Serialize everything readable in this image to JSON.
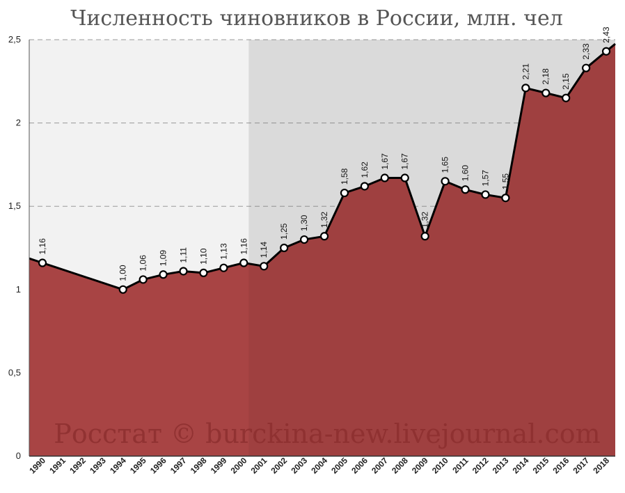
{
  "chart_data": {
    "type": "area",
    "title": "Численность чиновников в России, млн. чел",
    "watermark": "Росстат © burckina-new.livejournal.com",
    "xlabel": "",
    "ylabel": "",
    "ylim": [
      0,
      2.5
    ],
    "yticks": [
      "0",
      "0,5",
      "1",
      "1,5",
      "2",
      "2,5"
    ],
    "grid": true,
    "colors": {
      "area": "#a84444",
      "line": "#000000",
      "bg_left": "#f2f2f2",
      "bg_right": "#e6e6e6",
      "grid": "#999999"
    },
    "categories": [
      "1990",
      "1991",
      "1992",
      "1993",
      "1994",
      "1995",
      "1996",
      "1997",
      "1998",
      "1999",
      "2000",
      "2001",
      "2002",
      "2003",
      "2004",
      "2005",
      "2006",
      "2007",
      "2008",
      "2009",
      "2010",
      "2011",
      "2012",
      "2013",
      "2014",
      "2015",
      "2016",
      "2017",
      "2018"
    ],
    "points": [
      {
        "year": "1990",
        "value": 1.16,
        "label": "1,16"
      },
      {
        "year": "1994",
        "value": 1.0,
        "label": "1,00"
      },
      {
        "year": "1995",
        "value": 1.06,
        "label": "1,06"
      },
      {
        "year": "1996",
        "value": 1.09,
        "label": "1,09"
      },
      {
        "year": "1997",
        "value": 1.11,
        "label": "1,11"
      },
      {
        "year": "1998",
        "value": 1.1,
        "label": "1,10"
      },
      {
        "year": "1999",
        "value": 1.13,
        "label": "1,13"
      },
      {
        "year": "2000",
        "value": 1.16,
        "label": "1,16"
      },
      {
        "year": "2001",
        "value": 1.14,
        "label": "1,14"
      },
      {
        "year": "2002",
        "value": 1.25,
        "label": "1,25"
      },
      {
        "year": "2003",
        "value": 1.3,
        "label": "1,30"
      },
      {
        "year": "2004",
        "value": 1.32,
        "label": "1,32"
      },
      {
        "year": "2005",
        "value": 1.58,
        "label": "1,58"
      },
      {
        "year": "2006",
        "value": 1.62,
        "label": "1,62"
      },
      {
        "year": "2007",
        "value": 1.67,
        "label": "1,67"
      },
      {
        "year": "2008",
        "value": 1.67,
        "label": "1,67"
      },
      {
        "year": "2009",
        "value": 1.32,
        "label": "1,32"
      },
      {
        "year": "2010",
        "value": 1.65,
        "label": "1,65"
      },
      {
        "year": "2011",
        "value": 1.6,
        "label": "1,60"
      },
      {
        "year": "2012",
        "value": 1.57,
        "label": "1,57"
      },
      {
        "year": "2013",
        "value": 1.55,
        "label": "1,55"
      },
      {
        "year": "2014",
        "value": 2.21,
        "label": "2,21"
      },
      {
        "year": "2015",
        "value": 2.18,
        "label": "2,18"
      },
      {
        "year": "2016",
        "value": 2.15,
        "label": "2,15"
      },
      {
        "year": "2017",
        "value": 2.33,
        "label": "2,33"
      },
      {
        "year": "2018",
        "value": 2.43,
        "label": "2,43"
      }
    ]
  }
}
